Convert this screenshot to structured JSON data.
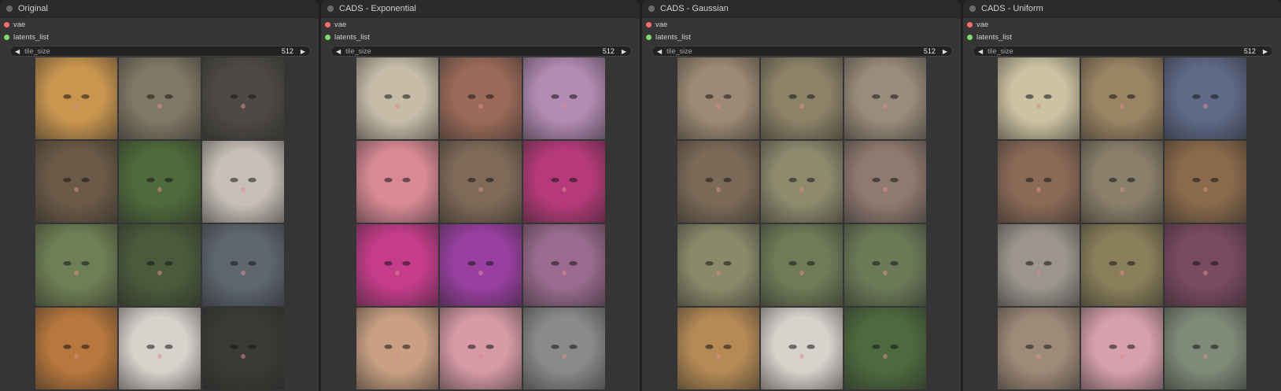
{
  "nodes": [
    {
      "title": "Original",
      "inputs": [
        {
          "label": "vae",
          "color": "#ff6b6b"
        },
        {
          "label": "latents_list",
          "color": "#7ddc6a"
        }
      ],
      "widget": {
        "label": "tile_size",
        "value": "512"
      },
      "tiles": [
        "#c9954f",
        "#807866",
        "#4d4a45",
        "#6b5a47",
        "#4f6a3b",
        "#c7c0b8",
        "#6f7f55",
        "#4b5a3b",
        "#5f6670",
        "#b8783d",
        "#d8d2cc",
        "#3c3a36"
      ]
    },
    {
      "title": "CADS - Exponential",
      "inputs": [
        {
          "label": "vae",
          "color": "#ff6b6b"
        },
        {
          "label": "latents_list",
          "color": "#7ddc6a"
        }
      ],
      "widget": {
        "label": "tile_size",
        "value": "512"
      },
      "tiles": [
        "#c6bca8",
        "#9b6a59",
        "#b38bb3",
        "#d98a95",
        "#7f6a58",
        "#b63a79",
        "#c43c8a",
        "#9a3fa1",
        "#9a6b8e",
        "#c9a082",
        "#d79aa6",
        "#8a8a8a"
      ]
    },
    {
      "title": "CADS - Gaussian",
      "inputs": [
        {
          "label": "vae",
          "color": "#ff6b6b"
        },
        {
          "label": "latents_list",
          "color": "#7ddc6a"
        }
      ],
      "widget": {
        "label": "tile_size",
        "value": "512"
      },
      "tiles": [
        "#9c8a74",
        "#8d8268",
        "#9a8b7b",
        "#7b6a57",
        "#8d8a6e",
        "#8f7a70",
        "#8a8a6b",
        "#6f7a57",
        "#6c7a58",
        "#b58a55",
        "#d8d2cc",
        "#4d6a3e"
      ]
    },
    {
      "title": "CADS - Uniform",
      "inputs": [
        {
          "label": "vae",
          "color": "#ff6b6b"
        },
        {
          "label": "latents_list",
          "color": "#7ddc6a"
        }
      ],
      "widget": {
        "label": "tile_size",
        "value": "512"
      },
      "tiles": [
        "#cdc2a2",
        "#9a8463",
        "#5f6a88",
        "#8a6a57",
        "#8a7f6a",
        "#8a6a4b",
        "#9b958d",
        "#8a7f5a",
        "#7a4a5f",
        "#9e8a78",
        "#d8a0ae",
        "#7f8a78"
      ]
    }
  ]
}
